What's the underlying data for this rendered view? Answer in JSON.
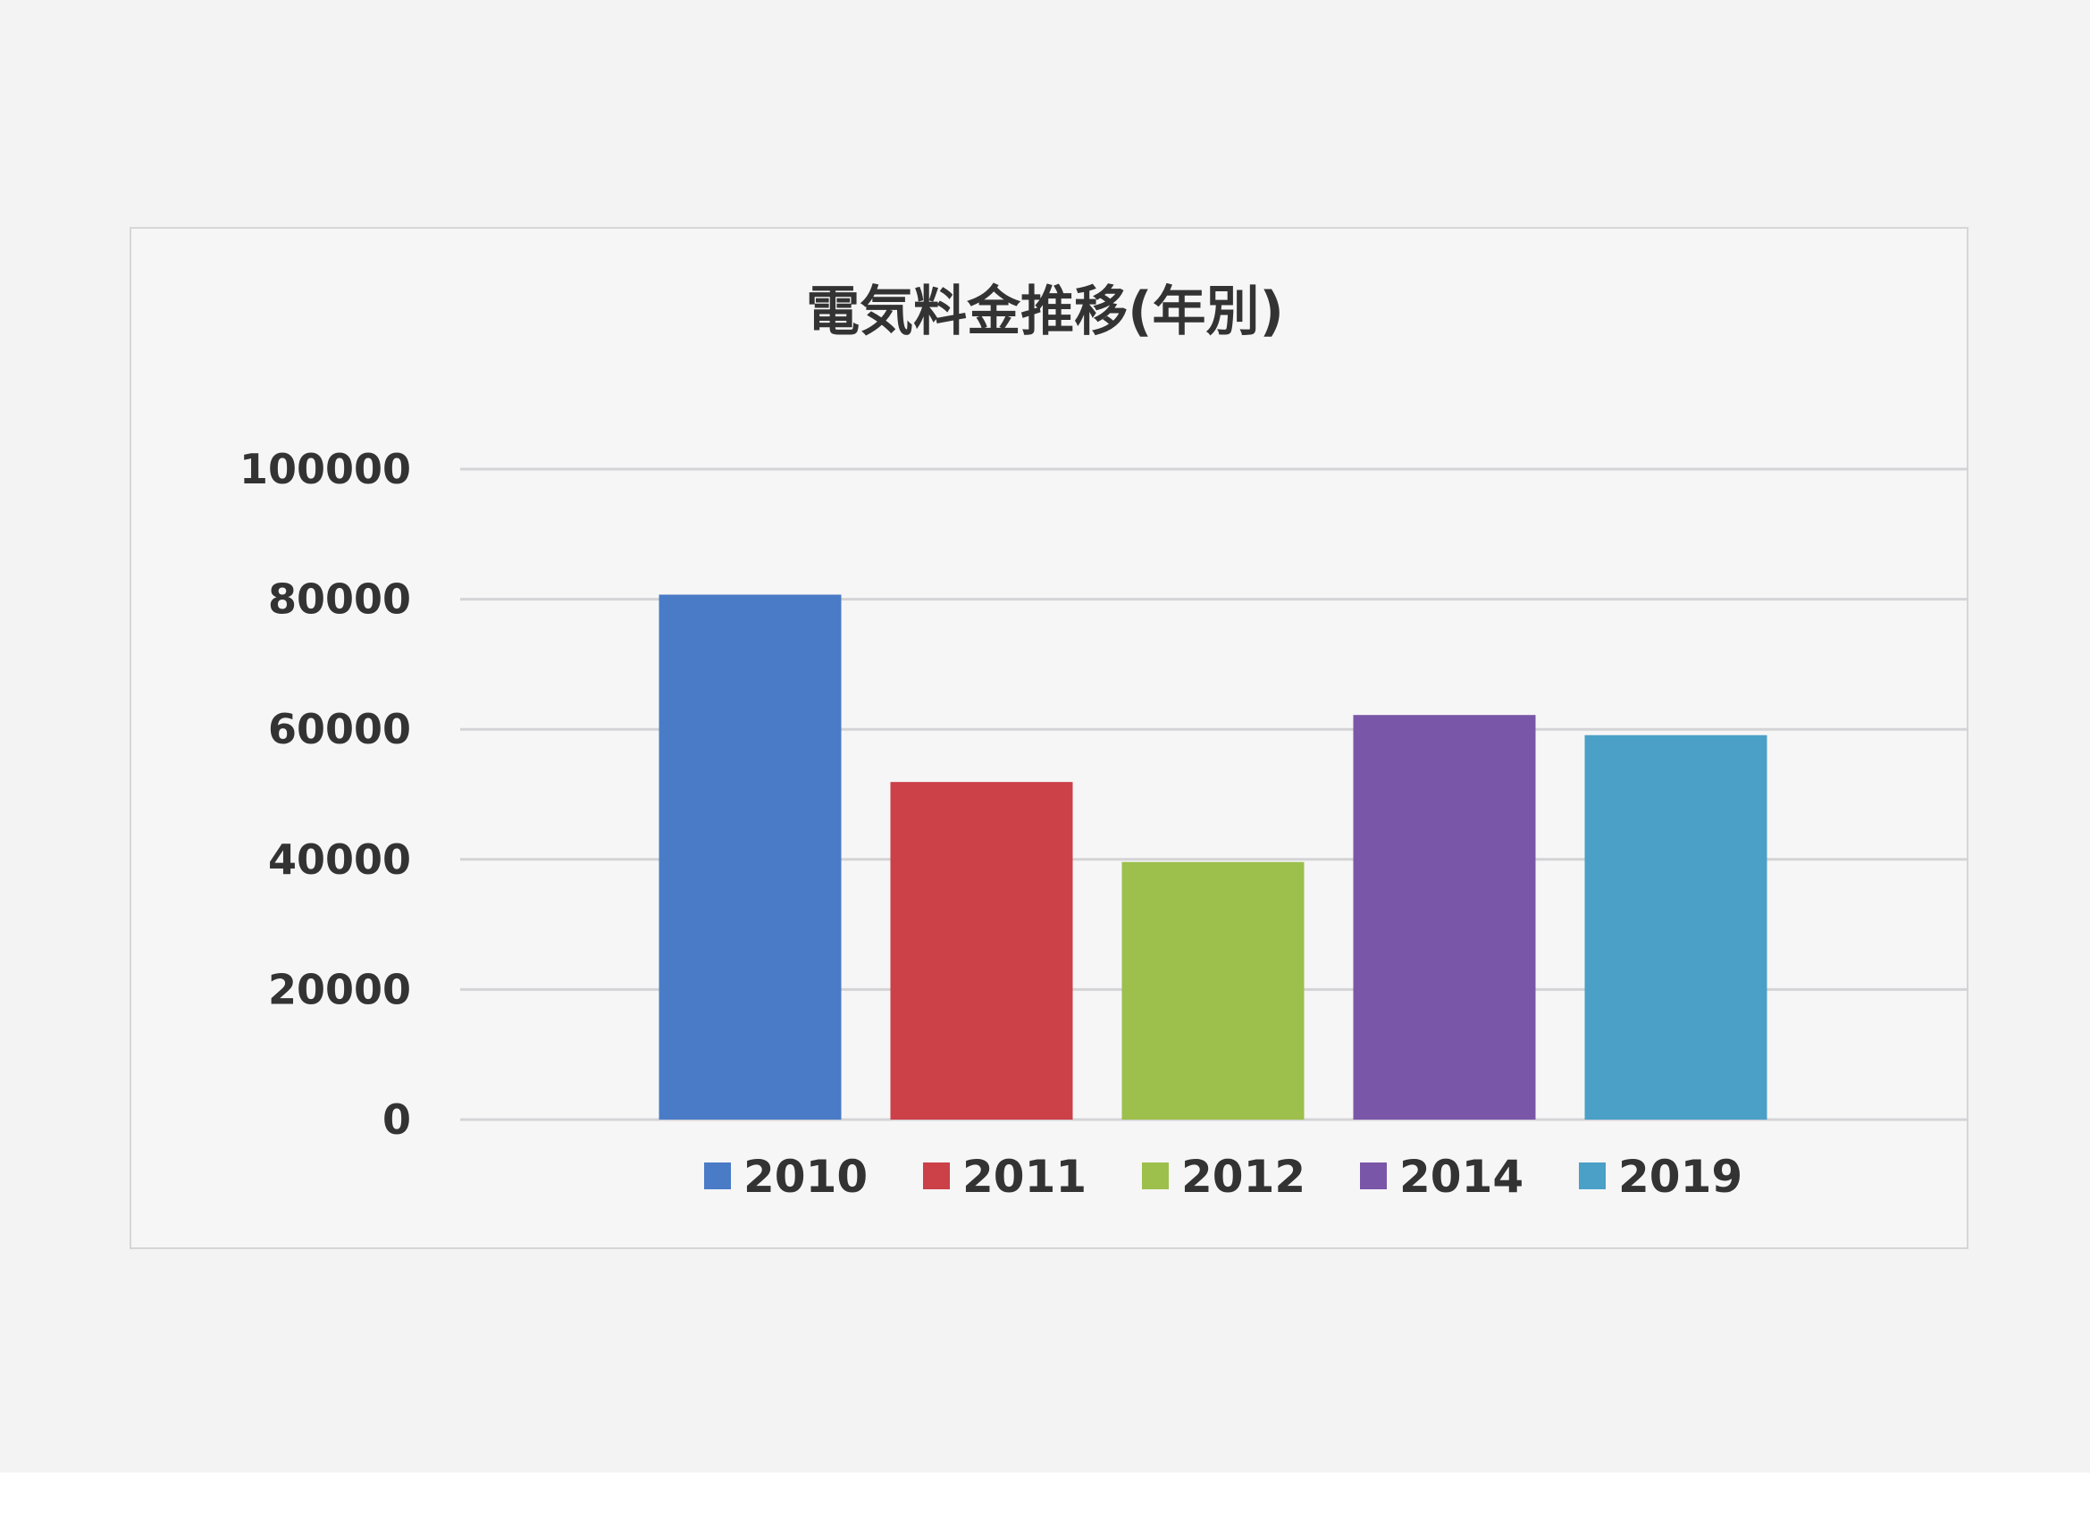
{
  "chart_data": {
    "type": "bar",
    "title": "電気料金推移(年別)",
    "categories": [
      "2010",
      "2011",
      "2012",
      "2014",
      "2019"
    ],
    "values": [
      80700,
      51900,
      39600,
      62200,
      59100
    ],
    "colors": [
      "#4a7bc6",
      "#cc4048",
      "#9dbf4c",
      "#7a56a8",
      "#4aa0c6"
    ],
    "xlabel": "",
    "ylabel": "",
    "ylim": [
      0,
      100000
    ],
    "yticks": [
      "0",
      "20000",
      "40000",
      "60000",
      "80000",
      "100000"
    ],
    "grid": true,
    "legend": "bottom"
  }
}
